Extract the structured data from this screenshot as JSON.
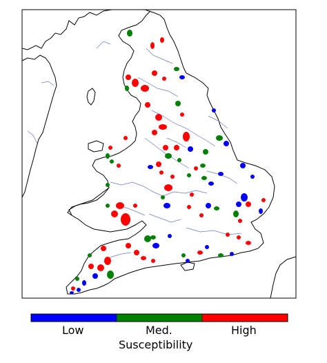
{
  "map": {
    "colors": {
      "low": "#0000ff",
      "medium": "#008000",
      "high": "#ff0000",
      "river": "#6a78c8",
      "coast": "#000000"
    },
    "legend": {
      "title": "Susceptibility",
      "labels": [
        "Low",
        "Med.",
        "High"
      ]
    }
  }
}
